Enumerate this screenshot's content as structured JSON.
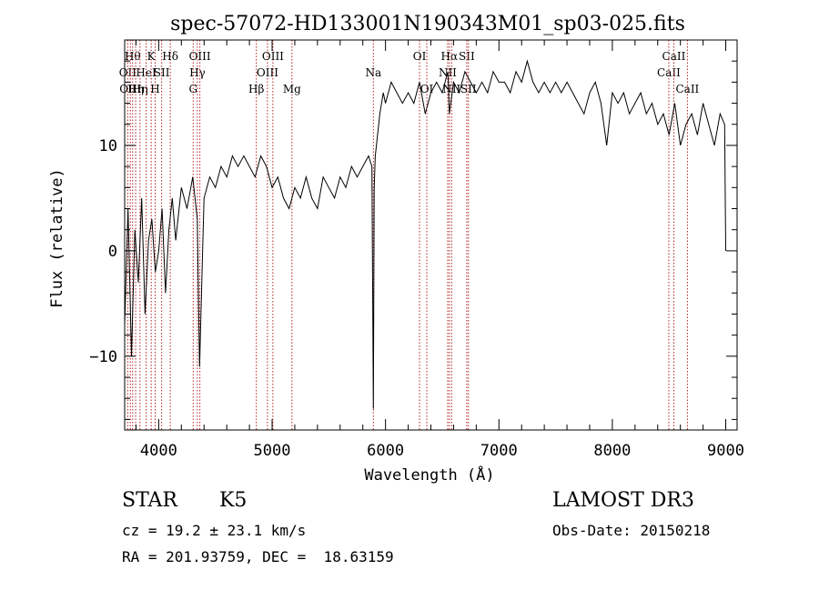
{
  "chart_data": {
    "type": "line",
    "title": "spec-57072-HD133001N190343M01_sp03-025.fits",
    "xlabel": "Wavelength (Å)",
    "ylabel": "Flux (relative)",
    "xlim": [
      3700,
      9100
    ],
    "ylim": [
      -17,
      20
    ],
    "xticks": [
      4000,
      5000,
      6000,
      7000,
      8000,
      9000
    ],
    "yticks": [
      -10,
      0,
      10
    ],
    "xtick_labels": [
      "4000",
      "5000",
      "6000",
      "7000",
      "8000",
      "9000"
    ],
    "ytick_labels": [
      "−10",
      "0",
      "10"
    ],
    "grid": false,
    "line_color": "#000000",
    "marker_color": "#b22222",
    "series": [
      {
        "x": [
          3700,
          3730,
          3760,
          3790,
          3820,
          3850,
          3880,
          3910,
          3940,
          3970,
          4000,
          4030,
          4060,
          4090,
          4120,
          4150,
          4200,
          4250,
          4300,
          4340,
          4360,
          4400,
          4450,
          4500,
          4550,
          4600,
          4650,
          4700,
          4750,
          4800,
          4850,
          4900,
          4950,
          5000,
          5050,
          5100,
          5150,
          5200,
          5250,
          5300,
          5350,
          5400,
          5450,
          5500,
          5550,
          5600,
          5650,
          5700,
          5750,
          5800,
          5850,
          5880,
          5893,
          5900,
          5910,
          5930,
          5950,
          5980,
          6000,
          6050,
          6100,
          6150,
          6200,
          6250,
          6300,
          6350,
          6400,
          6450,
          6500,
          6550,
          6563,
          6600,
          6650,
          6700,
          6750,
          6800,
          6850,
          6900,
          6950,
          7000,
          7050,
          7100,
          7150,
          7200,
          7250,
          7300,
          7350,
          7400,
          7450,
          7500,
          7550,
          7600,
          7650,
          7700,
          7750,
          7800,
          7850,
          7900,
          7950,
          8000,
          8050,
          8100,
          8150,
          8200,
          8250,
          8300,
          8350,
          8400,
          8450,
          8500,
          8550,
          8600,
          8650,
          8700,
          8750,
          8800,
          8850,
          8900,
          8950,
          8990,
          9000
        ],
        "y": [
          -7,
          4,
          -10,
          2,
          -3,
          5,
          -6,
          1,
          3,
          -2,
          0,
          4,
          -4,
          2,
          5,
          1,
          6,
          4,
          7,
          3,
          -11,
          5,
          7,
          6,
          8,
          7,
          9,
          8,
          9,
          8,
          7,
          9,
          8,
          6,
          7,
          5,
          4,
          6,
          5,
          7,
          5,
          4,
          7,
          6,
          5,
          7,
          6,
          8,
          7,
          8,
          9,
          8,
          -15,
          6,
          9,
          11,
          13,
          15,
          14,
          16,
          15,
          14,
          15,
          14,
          16,
          13,
          15,
          16,
          15,
          17,
          13,
          16,
          15,
          17,
          16,
          15,
          16,
          15,
          17,
          16,
          16,
          15,
          17,
          16,
          18,
          16,
          15,
          16,
          15,
          16,
          15,
          16,
          15,
          14,
          13,
          15,
          16,
          14,
          10,
          15,
          14,
          15,
          13,
          14,
          15,
          13,
          14,
          12,
          13,
          11,
          14,
          10,
          12,
          13,
          11,
          14,
          12,
          10,
          13,
          12,
          0
        ]
      }
    ],
    "line_markers": [
      {
        "x": 3727,
        "label": "OII",
        "row": 2
      },
      {
        "x": 3750,
        "label": "OIII",
        "row": 3
      },
      {
        "x": 3770,
        "label": "Hθ",
        "row": 1
      },
      {
        "x": 3797,
        "label": "Hη",
        "row": 3
      },
      {
        "x": 3835,
        "label": "Hη",
        "row": 3
      },
      {
        "x": 3889,
        "label": "HeI",
        "row": 2
      },
      {
        "x": 3934,
        "label": "K",
        "row": 1
      },
      {
        "x": 3969,
        "label": "H",
        "row": 3
      },
      {
        "x": 4026,
        "label": "SII",
        "row": 2
      },
      {
        "x": 4102,
        "label": "Hδ",
        "row": 1
      },
      {
        "x": 4304,
        "label": "G",
        "row": 3
      },
      {
        "x": 4341,
        "label": "Hγ",
        "row": 2
      },
      {
        "x": 4363,
        "label": "OIII",
        "row": 1
      },
      {
        "x": 4861,
        "label": "Hβ",
        "row": 3
      },
      {
        "x": 4959,
        "label": "OIII",
        "row": 2
      },
      {
        "x": 5007,
        "label": "OIII",
        "row": 1
      },
      {
        "x": 5175,
        "label": "Mg",
        "row": 3
      },
      {
        "x": 5893,
        "label": "Na",
        "row": 2
      },
      {
        "x": 6300,
        "label": "OI",
        "row": 1
      },
      {
        "x": 6364,
        "label": "OI",
        "row": 3
      },
      {
        "x": 6548,
        "label": "NII",
        "row": 2
      },
      {
        "x": 6563,
        "label": "Hα",
        "row": 1
      },
      {
        "x": 6583,
        "label": "NII",
        "row": 3
      },
      {
        "x": 6716,
        "label": "SII",
        "row": 1
      },
      {
        "x": 6731,
        "label": "SII",
        "row": 3
      },
      {
        "x": 8498,
        "label": "CaII",
        "row": 2
      },
      {
        "x": 8542,
        "label": "CaII",
        "row": 1
      },
      {
        "x": 8662,
        "label": "CaII",
        "row": 3
      }
    ]
  },
  "info": {
    "object_class": "STAR",
    "subclass": "K5",
    "survey": "LAMOST DR3",
    "redshift_line": "cz = 19.2 ± 23.1 km/s",
    "obs_date_line": "Obs-Date: 20150218",
    "coords_line": "RA = 201.93759, DEC =  18.63159"
  }
}
